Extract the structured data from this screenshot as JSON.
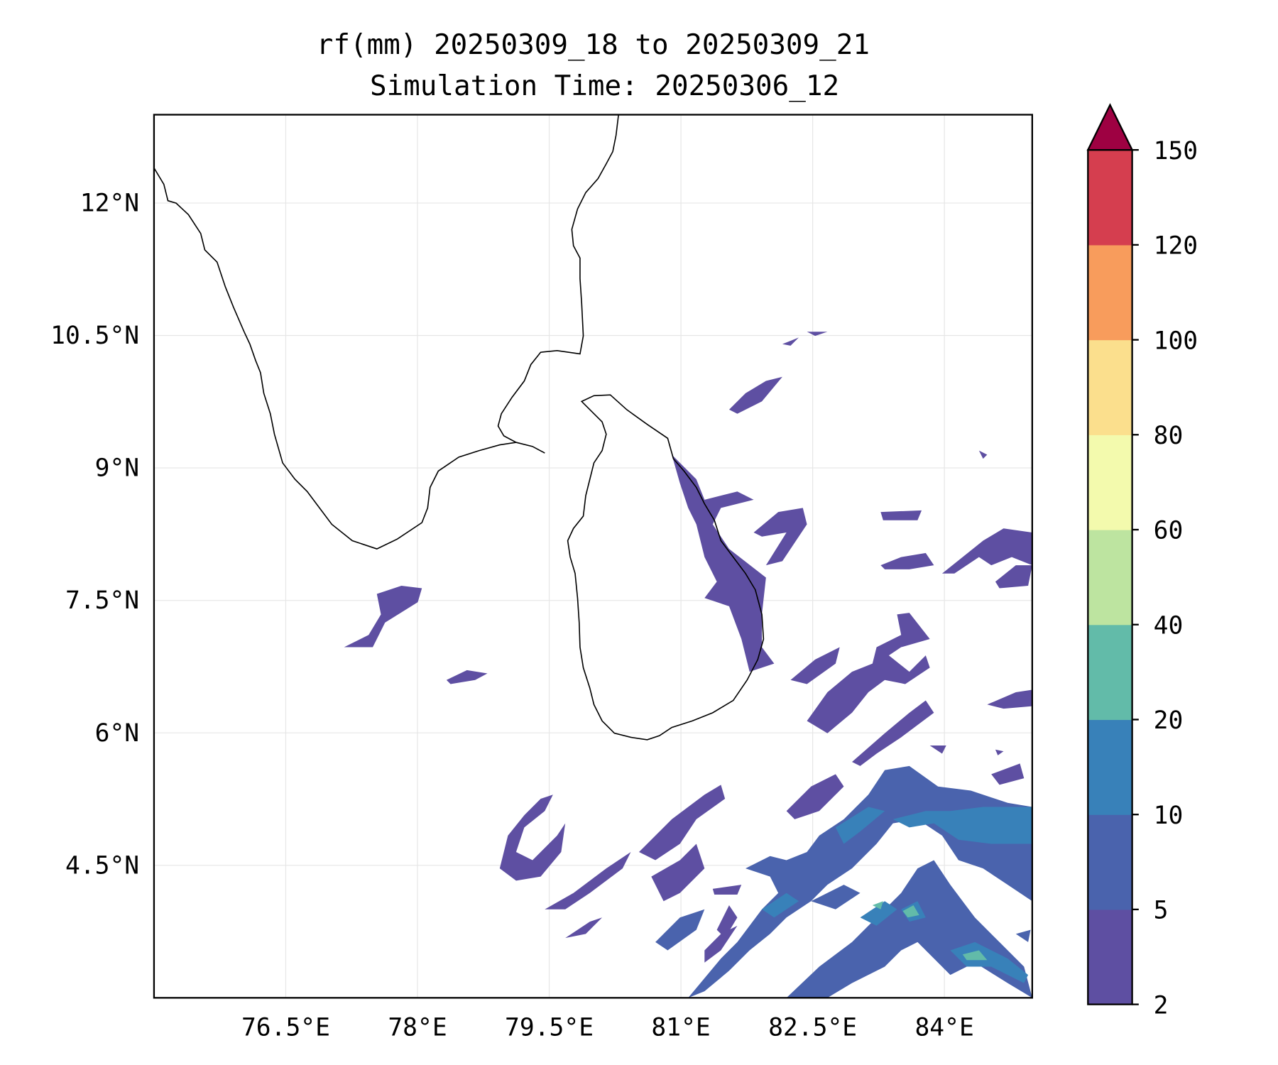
{
  "title": {
    "line1": "rf(mm) 20250309_18 to 20250309_21",
    "line2": "Simulation Time: 20250306_12"
  },
  "map": {
    "extent": {
      "lon": [
        75,
        85
      ],
      "lat": [
        3,
        13
      ]
    },
    "lon_ticks": [
      {
        "value": 76.5,
        "label": "76.5°E"
      },
      {
        "value": 78,
        "label": "78°E"
      },
      {
        "value": 79.5,
        "label": "79.5°E"
      },
      {
        "value": 81,
        "label": "81°E"
      },
      {
        "value": 82.5,
        "label": "82.5°E"
      },
      {
        "value": 84,
        "label": "84°E"
      }
    ],
    "lat_ticks": [
      {
        "value": 12,
        "label": "12°N"
      },
      {
        "value": 10.5,
        "label": "10.5°N"
      },
      {
        "value": 9,
        "label": "9°N"
      },
      {
        "value": 7.5,
        "label": "7.5°N"
      },
      {
        "value": 6,
        "label": "6°N"
      },
      {
        "value": 4.5,
        "label": "4.5°N"
      }
    ],
    "grid": true
  },
  "colorbar": {
    "levels": [
      "2",
      "5",
      "10",
      "20",
      "40",
      "60",
      "80",
      "100",
      "120",
      "150"
    ],
    "colors": [
      "#5e4fa2",
      "#4a63ad",
      "#3881b9",
      "#62bba9",
      "#bde4a0",
      "#f3faad",
      "#fbdf8d",
      "#f89c5c",
      "#d53e4f"
    ],
    "extend_color": "#9e0142"
  }
}
